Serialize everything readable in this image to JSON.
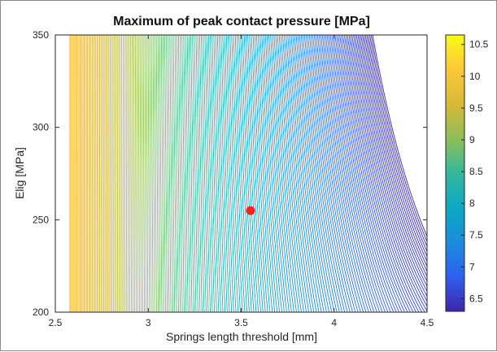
{
  "chart_data": {
    "type": "contour",
    "title": "Maximum of peak contact pressure [MPa]",
    "xlabel": "Springs length threshold [mm]",
    "ylabel": "Elig [MPa]",
    "xlim": [
      2.5,
      4.5
    ],
    "ylim": [
      200,
      350
    ],
    "xticks": [
      "2.5",
      "3",
      "3.5",
      "4",
      "4.5"
    ],
    "yticks": [
      "200",
      "250",
      "300",
      "350"
    ],
    "colorbar": {
      "range": [
        6.3,
        10.65
      ],
      "ticks": [
        "6.5",
        "7",
        "7.5",
        "8",
        "8.5",
        "9",
        "9.5",
        "10",
        "10.5"
      ],
      "colormap": [
        "#3e26a8",
        "#2f5ff0",
        "#1a8ddc",
        "#0ea8c4",
        "#35b79b",
        "#8fbd5a",
        "#d7ba37",
        "#fcc838",
        "#f9fb14"
      ]
    },
    "marker": {
      "x": 3.55,
      "y": 255,
      "color": "#ff2020"
    },
    "grid": false
  }
}
